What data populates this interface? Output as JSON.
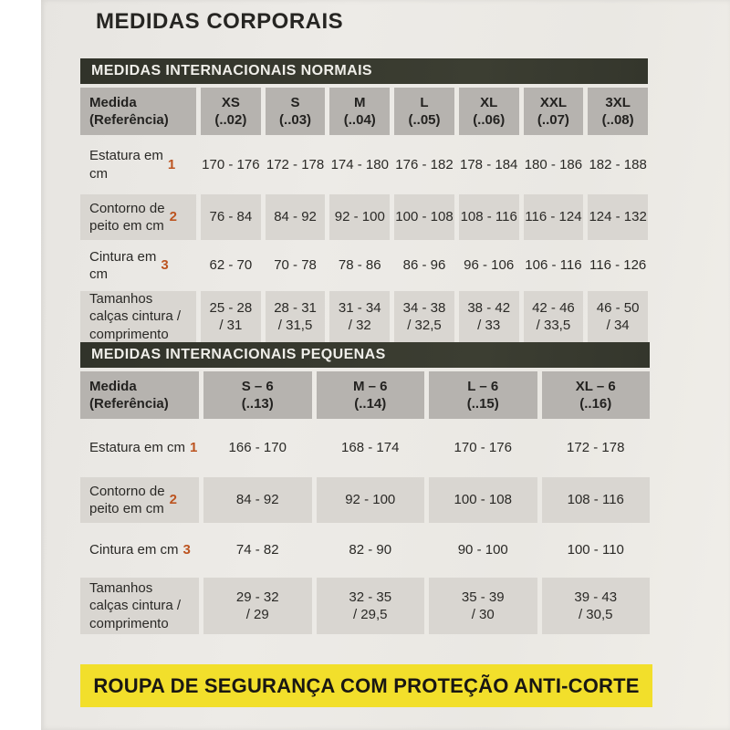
{
  "page_title": "MEDIDAS CORPORAIS",
  "colors": {
    "paper": "#ebe9e4",
    "bar_bg": "#31332a",
    "bar_text": "#efeee9",
    "header_cell": "#b6b3af",
    "row_cell": "#d9d6d1",
    "accent_number": "#bc5420",
    "banner_bg": "#f2df2b",
    "banner_text": "#191713",
    "text": "#2a2926"
  },
  "table_normais": {
    "section_title": "MEDIDAS INTERNACIONAIS NORMAIS",
    "ref_header": "Medida\n(Referência)",
    "col_headers": [
      "XS\n(..02)",
      "S\n(..03)",
      "M\n(..04)",
      "L\n(..05)",
      "XL\n(..06)",
      "XXL\n(..07)",
      "3XL\n(..08)"
    ],
    "rows": [
      {
        "label": "Estatura em\ncm",
        "num": "1",
        "values": [
          "170 - 176",
          "172 - 178",
          "174 - 180",
          "176 - 182",
          "178 - 184",
          "180 - 186",
          "182 - 188"
        ]
      },
      {
        "label": "Contorno de\npeito em cm",
        "num": "2",
        "values": [
          "76 - 84",
          "84 - 92",
          "92 - 100",
          "100 - 108",
          "108 - 116",
          "116 - 124",
          "124 - 132"
        ]
      },
      {
        "label": "Cintura em\ncm",
        "num": "3",
        "values": [
          "62 - 70",
          "70 - 78",
          "78 - 86",
          "86 - 96",
          "96 - 106",
          "106 - 116",
          "116 - 126"
        ]
      },
      {
        "label": "Tamanhos\ncalças cintura /\ncomprimento",
        "num": "",
        "values": [
          "25 - 28\n/ 31",
          "28 - 31\n/ 31,5",
          "31 - 34\n/ 32",
          "34 - 38\n/ 32,5",
          "38 - 42\n/ 33",
          "42 - 46\n/ 33,5",
          "46 - 50\n/ 34"
        ]
      }
    ]
  },
  "table_pequenas": {
    "section_title": "MEDIDAS INTERNACIONAIS PEQUENAS",
    "ref_header": "Medida\n(Referência)",
    "col_headers": [
      "S – 6\n(..13)",
      "M – 6\n(..14)",
      "L – 6\n(..15)",
      "XL – 6\n(..16)"
    ],
    "rows": [
      {
        "label": "Estatura em cm",
        "num": "1",
        "values": [
          "166 - 170",
          "168 - 174",
          "170 - 176",
          "172 - 178"
        ]
      },
      {
        "label": "Contorno de\npeito em cm",
        "num": "2",
        "values": [
          "84 - 92",
          "92 - 100",
          "100 - 108",
          "108 - 116"
        ]
      },
      {
        "label": "Cintura em cm",
        "num": "3",
        "values": [
          "74 - 82",
          "82 - 90",
          "90 - 100",
          "100 - 110"
        ]
      },
      {
        "label": "Tamanhos\ncalças cintura /\ncomprimento",
        "num": "",
        "values": [
          "29 - 32\n/ 29",
          "32 - 35\n/ 29,5",
          "35 - 39\n/ 30",
          "39 - 43\n/ 30,5"
        ]
      }
    ]
  },
  "banner": {
    "text": "ROUPA DE SEGURANÇA COM PROTEÇÃO ANTI-CORTE"
  }
}
